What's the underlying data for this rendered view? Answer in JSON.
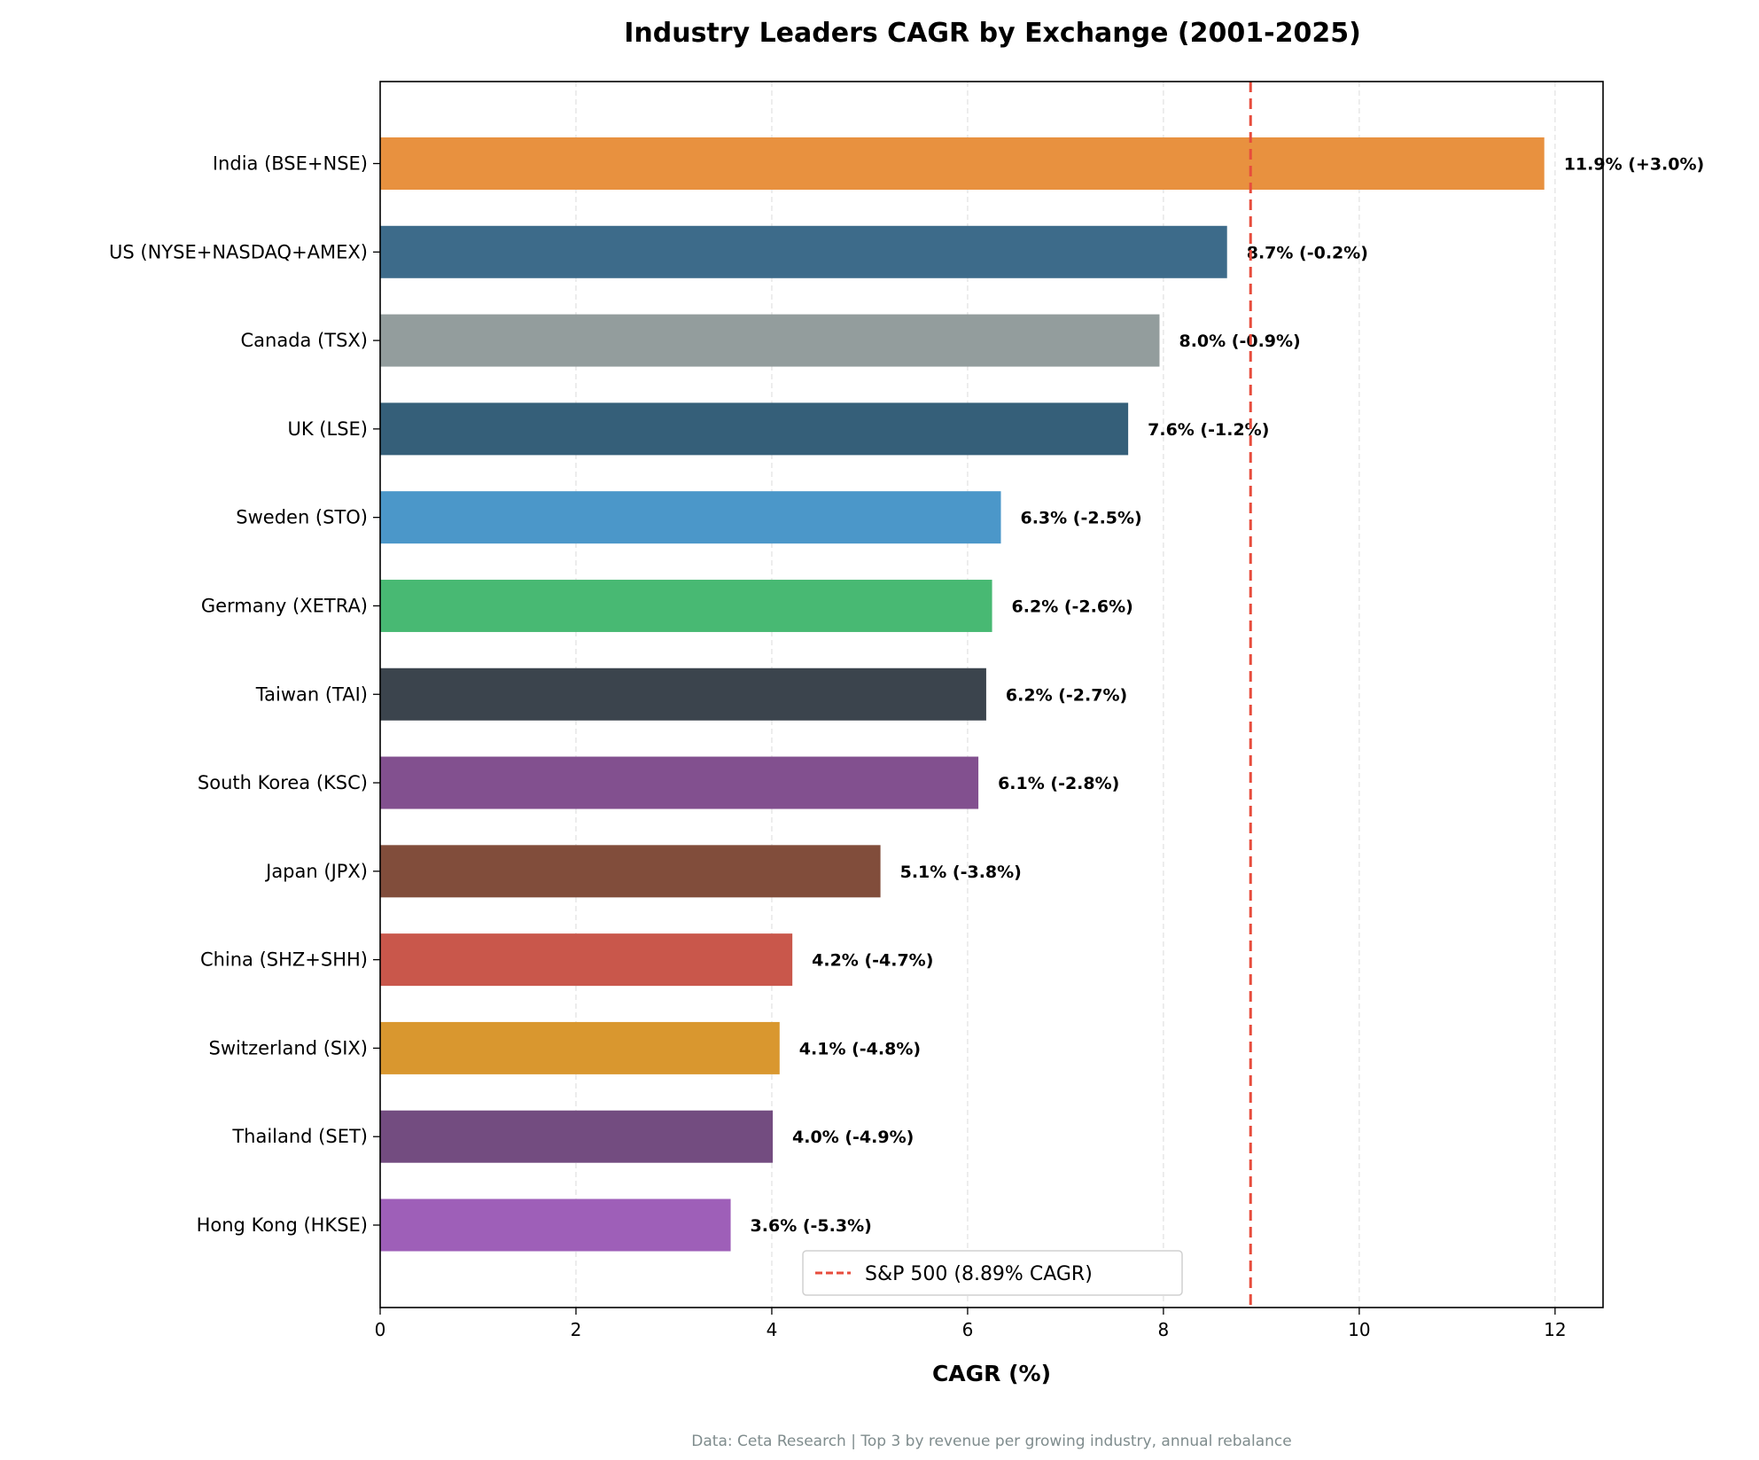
{
  "chart_data": {
    "type": "bar",
    "orientation": "horizontal",
    "title": "Industry Leaders CAGR by Exchange (2001-2025)",
    "xlabel": "CAGR (%)",
    "ylabel": "",
    "xlim": [
      0,
      12.49
    ],
    "xticks": [
      0,
      2,
      4,
      6,
      8,
      10,
      12
    ],
    "grid": "x, dashed",
    "categories": [
      "India (BSE+NSE)",
      "US (NYSE+NASDAQ+AMEX)",
      "Canada (TSX)",
      "UK (LSE)",
      "Sweden (STO)",
      "Germany (XETRA)",
      "Taiwan (TAI)",
      "South Korea (KSC)",
      "Japan (JPX)",
      "China (SHZ+SHH)",
      "Switzerland (SIX)",
      "Thailand (SET)",
      "Hong Kong (HKSE)"
    ],
    "values": [
      11.89,
      8.65,
      7.96,
      7.64,
      6.34,
      6.25,
      6.19,
      6.11,
      5.11,
      4.21,
      4.08,
      4.01,
      3.58
    ],
    "data_labels": [
      "11.9% (+3.0%)",
      "8.7% (-0.2%)",
      "8.0% (-0.9%)",
      "7.6% (-1.2%)",
      "6.3% (-2.5%)",
      "6.2% (-2.6%)",
      "6.2% (-2.7%)",
      "6.1% (-2.8%)",
      "5.1% (-3.8%)",
      "4.2% (-4.7%)",
      "4.1% (-4.8%)",
      "4.0% (-4.9%)",
      "3.6% (-5.3%)"
    ],
    "colors": [
      "#e8913f",
      "#3d6b8a",
      "#939d9d",
      "#355f79",
      "#4b97c9",
      "#48b973",
      "#3b444d",
      "#82508f",
      "#814d3b",
      "#c9574b",
      "#d9972f",
      "#734c80",
      "#9e5fb8"
    ],
    "reference_line": {
      "value": 8.89,
      "label": "S&P 500 (8.89% CAGR)",
      "color": "#e74c3c",
      "style": "dashed"
    },
    "legend_position": "lower center",
    "footnote": "Data: Ceta Research | Top 3 by revenue per growing industry, annual rebalance"
  }
}
